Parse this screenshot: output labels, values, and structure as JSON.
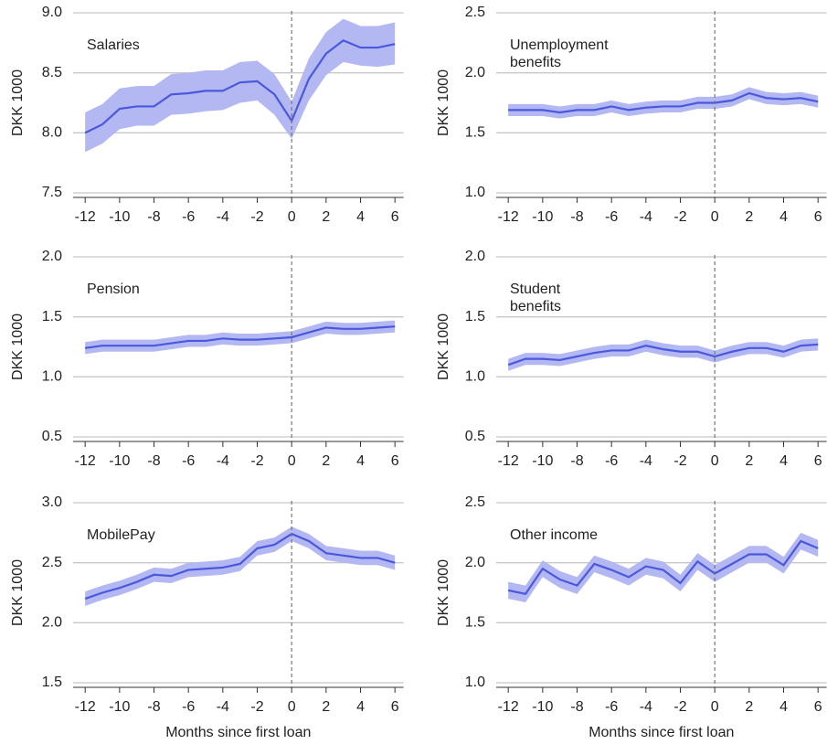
{
  "chart_data": [
    {
      "type": "line",
      "title": "Salaries",
      "ylabel": "DKK 1000",
      "x": [
        -12,
        -11,
        -10,
        -9,
        -8,
        -7,
        -6,
        -5,
        -4,
        -3,
        -2,
        -1,
        0,
        1,
        2,
        3,
        4,
        5,
        6
      ],
      "series": [
        {
          "color": "#4a58dc",
          "band_color": "#b3b8f2",
          "values": [
            8.0,
            8.07,
            8.2,
            8.22,
            8.22,
            8.32,
            8.33,
            8.35,
            8.35,
            8.42,
            8.43,
            8.32,
            8.1,
            8.45,
            8.66,
            8.77,
            8.71,
            8.71,
            8.74
          ],
          "lower": [
            7.84,
            7.91,
            8.03,
            8.06,
            8.06,
            8.15,
            8.16,
            8.18,
            8.19,
            8.25,
            8.27,
            8.15,
            7.95,
            8.27,
            8.48,
            8.59,
            8.56,
            8.55,
            8.57
          ],
          "upper": [
            8.17,
            8.24,
            8.37,
            8.39,
            8.39,
            8.49,
            8.5,
            8.52,
            8.52,
            8.59,
            8.6,
            8.49,
            8.26,
            8.62,
            8.84,
            8.95,
            8.89,
            8.89,
            8.92
          ]
        }
      ],
      "xlim": [
        -12.7,
        6.5
      ],
      "xticks": [
        -12,
        -10,
        -8,
        -6,
        -4,
        -2,
        0,
        2,
        4,
        6
      ],
      "ylim": [
        7.5,
        9.0
      ],
      "yticks": [
        7.5,
        {
          "value": 8.0,
          "label": "8.0"
        },
        8.5,
        {
          "value": 9.0,
          "label": "9.0"
        }
      ],
      "grid": true,
      "vline": 0
    },
    {
      "type": "line",
      "title": "Unemployment\nbenefits",
      "ylabel": "DKK 1000",
      "x": [
        -12,
        -11,
        -10,
        -9,
        -8,
        -7,
        -6,
        -5,
        -4,
        -3,
        -2,
        -1,
        0,
        1,
        2,
        3,
        4,
        5,
        6
      ],
      "series": [
        {
          "color": "#4a58dc",
          "band_color": "#b3b8f2",
          "values": [
            1.69,
            1.69,
            1.69,
            1.67,
            1.69,
            1.69,
            1.72,
            1.69,
            1.71,
            1.72,
            1.72,
            1.75,
            1.75,
            1.77,
            1.83,
            1.79,
            1.78,
            1.79,
            1.76
          ],
          "lower": [
            1.64,
            1.64,
            1.64,
            1.62,
            1.64,
            1.64,
            1.67,
            1.64,
            1.66,
            1.67,
            1.67,
            1.7,
            1.7,
            1.72,
            1.78,
            1.74,
            1.73,
            1.74,
            1.71
          ],
          "upper": [
            1.74,
            1.74,
            1.74,
            1.72,
            1.74,
            1.74,
            1.77,
            1.74,
            1.76,
            1.77,
            1.77,
            1.8,
            1.8,
            1.82,
            1.88,
            1.84,
            1.83,
            1.84,
            1.81
          ]
        }
      ],
      "xlim": [
        -12.7,
        6.5
      ],
      "xticks": [
        -12,
        -10,
        -8,
        -6,
        -4,
        -2,
        0,
        2,
        4,
        6
      ],
      "ylim": [
        1.0,
        2.5
      ],
      "yticks": [
        {
          "value": 1.0,
          "label": "1.0"
        },
        1.5,
        {
          "value": 2.0,
          "label": "2.0"
        },
        2.5
      ],
      "grid": true,
      "vline": 0
    },
    {
      "type": "line",
      "title": "Pension",
      "ylabel": "DKK 1000",
      "x": [
        -12,
        -11,
        -10,
        -9,
        -8,
        -7,
        -6,
        -5,
        -4,
        -3,
        -2,
        -1,
        0,
        1,
        2,
        3,
        4,
        5,
        6
      ],
      "series": [
        {
          "color": "#4a58dc",
          "band_color": "#b3b8f2",
          "values": [
            1.24,
            1.26,
            1.26,
            1.26,
            1.26,
            1.28,
            1.3,
            1.3,
            1.32,
            1.31,
            1.31,
            1.32,
            1.33,
            1.37,
            1.41,
            1.4,
            1.4,
            1.41,
            1.42
          ],
          "lower": [
            1.19,
            1.21,
            1.21,
            1.21,
            1.21,
            1.23,
            1.25,
            1.25,
            1.27,
            1.26,
            1.26,
            1.27,
            1.28,
            1.32,
            1.36,
            1.35,
            1.35,
            1.36,
            1.37
          ],
          "upper": [
            1.29,
            1.31,
            1.31,
            1.31,
            1.31,
            1.33,
            1.35,
            1.35,
            1.37,
            1.36,
            1.36,
            1.37,
            1.38,
            1.42,
            1.46,
            1.45,
            1.45,
            1.46,
            1.47
          ]
        }
      ],
      "xlim": [
        -12.7,
        6.5
      ],
      "xticks": [
        -12,
        -10,
        -8,
        -6,
        -4,
        -2,
        0,
        2,
        4,
        6
      ],
      "ylim": [
        0.5,
        2.0
      ],
      "yticks": [
        0.5,
        {
          "value": 1.0,
          "label": "1.0"
        },
        1.5,
        {
          "value": 2.0,
          "label": "2.0"
        }
      ],
      "grid": true,
      "vline": 0
    },
    {
      "type": "line",
      "title": "Student\nbenefits",
      "ylabel": "DKK 1000",
      "x": [
        -12,
        -11,
        -10,
        -9,
        -8,
        -7,
        -6,
        -5,
        -4,
        -3,
        -2,
        -1,
        0,
        1,
        2,
        3,
        4,
        5,
        6
      ],
      "series": [
        {
          "color": "#4a58dc",
          "band_color": "#b3b8f2",
          "values": [
            1.1,
            1.15,
            1.15,
            1.14,
            1.17,
            1.2,
            1.22,
            1.22,
            1.26,
            1.23,
            1.21,
            1.21,
            1.17,
            1.21,
            1.24,
            1.24,
            1.21,
            1.26,
            1.27
          ],
          "lower": [
            1.05,
            1.1,
            1.1,
            1.09,
            1.12,
            1.15,
            1.17,
            1.17,
            1.21,
            1.18,
            1.16,
            1.16,
            1.12,
            1.16,
            1.19,
            1.19,
            1.16,
            1.21,
            1.22
          ],
          "upper": [
            1.15,
            1.2,
            1.2,
            1.19,
            1.22,
            1.25,
            1.27,
            1.27,
            1.31,
            1.28,
            1.26,
            1.26,
            1.22,
            1.26,
            1.29,
            1.29,
            1.26,
            1.31,
            1.32
          ]
        }
      ],
      "xlim": [
        -12.7,
        6.5
      ],
      "xticks": [
        -12,
        -10,
        -8,
        -6,
        -4,
        -2,
        0,
        2,
        4,
        6
      ],
      "ylim": [
        0.5,
        2.0
      ],
      "yticks": [
        0.5,
        {
          "value": 1.0,
          "label": "1.0"
        },
        1.5,
        {
          "value": 2.0,
          "label": "2.0"
        }
      ],
      "grid": true,
      "vline": 0
    },
    {
      "type": "line",
      "title": "MobilePay",
      "ylabel": "DKK 1000",
      "xlabel": "Months since first loan",
      "x": [
        -12,
        -11,
        -10,
        -9,
        -8,
        -7,
        -6,
        -5,
        -4,
        -3,
        -2,
        -1,
        0,
        1,
        2,
        3,
        4,
        5,
        6
      ],
      "series": [
        {
          "color": "#4a58dc",
          "band_color": "#b3b8f2",
          "values": [
            2.2,
            2.25,
            2.29,
            2.34,
            2.4,
            2.39,
            2.44,
            2.45,
            2.46,
            2.49,
            2.62,
            2.65,
            2.74,
            2.68,
            2.58,
            2.56,
            2.54,
            2.54,
            2.5
          ],
          "lower": [
            2.14,
            2.19,
            2.23,
            2.28,
            2.34,
            2.33,
            2.38,
            2.39,
            2.4,
            2.43,
            2.56,
            2.59,
            2.68,
            2.62,
            2.52,
            2.5,
            2.48,
            2.48,
            2.44
          ],
          "upper": [
            2.26,
            2.31,
            2.35,
            2.4,
            2.46,
            2.45,
            2.5,
            2.51,
            2.52,
            2.55,
            2.68,
            2.71,
            2.8,
            2.74,
            2.64,
            2.62,
            2.6,
            2.6,
            2.56
          ]
        }
      ],
      "xlim": [
        -12.7,
        6.5
      ],
      "xticks": [
        -12,
        -10,
        -8,
        -6,
        -4,
        -2,
        0,
        2,
        4,
        6
      ],
      "ylim": [
        1.5,
        3.0
      ],
      "yticks": [
        1.5,
        {
          "value": 2.0,
          "label": "2.0"
        },
        2.5,
        {
          "value": 3.0,
          "label": "3.0"
        }
      ],
      "grid": true,
      "vline": 0
    },
    {
      "type": "line",
      "title": "Other income",
      "ylabel": "DKK 1000",
      "xlabel": "Months since first loan",
      "x": [
        -12,
        -11,
        -10,
        -9,
        -8,
        -7,
        -6,
        -5,
        -4,
        -3,
        -2,
        -1,
        0,
        1,
        2,
        3,
        4,
        5,
        6
      ],
      "series": [
        {
          "color": "#4a58dc",
          "band_color": "#b3b8f2",
          "values": [
            1.77,
            1.74,
            1.95,
            1.86,
            1.81,
            1.99,
            1.94,
            1.88,
            1.97,
            1.94,
            1.83,
            2.01,
            1.91,
            1.99,
            2.07,
            2.07,
            1.98,
            2.18,
            2.12
          ],
          "lower": [
            1.7,
            1.67,
            1.88,
            1.79,
            1.74,
            1.92,
            1.87,
            1.81,
            1.9,
            1.87,
            1.76,
            1.94,
            1.84,
            1.92,
            2.0,
            2.0,
            1.91,
            2.11,
            2.05
          ],
          "upper": [
            1.84,
            1.81,
            2.02,
            1.93,
            1.88,
            2.06,
            2.01,
            1.95,
            2.04,
            2.01,
            1.9,
            2.08,
            1.98,
            2.06,
            2.14,
            2.14,
            2.05,
            2.25,
            2.19
          ]
        }
      ],
      "xlim": [
        -12.7,
        6.5
      ],
      "xticks": [
        -12,
        -10,
        -8,
        -6,
        -4,
        -2,
        0,
        2,
        4,
        6
      ],
      "ylim": [
        1.0,
        2.5
      ],
      "yticks": [
        {
          "value": 1.0,
          "label": "1.0"
        },
        1.5,
        {
          "value": 2.0,
          "label": "2.0"
        },
        2.5
      ],
      "grid": true,
      "vline": 0
    }
  ]
}
